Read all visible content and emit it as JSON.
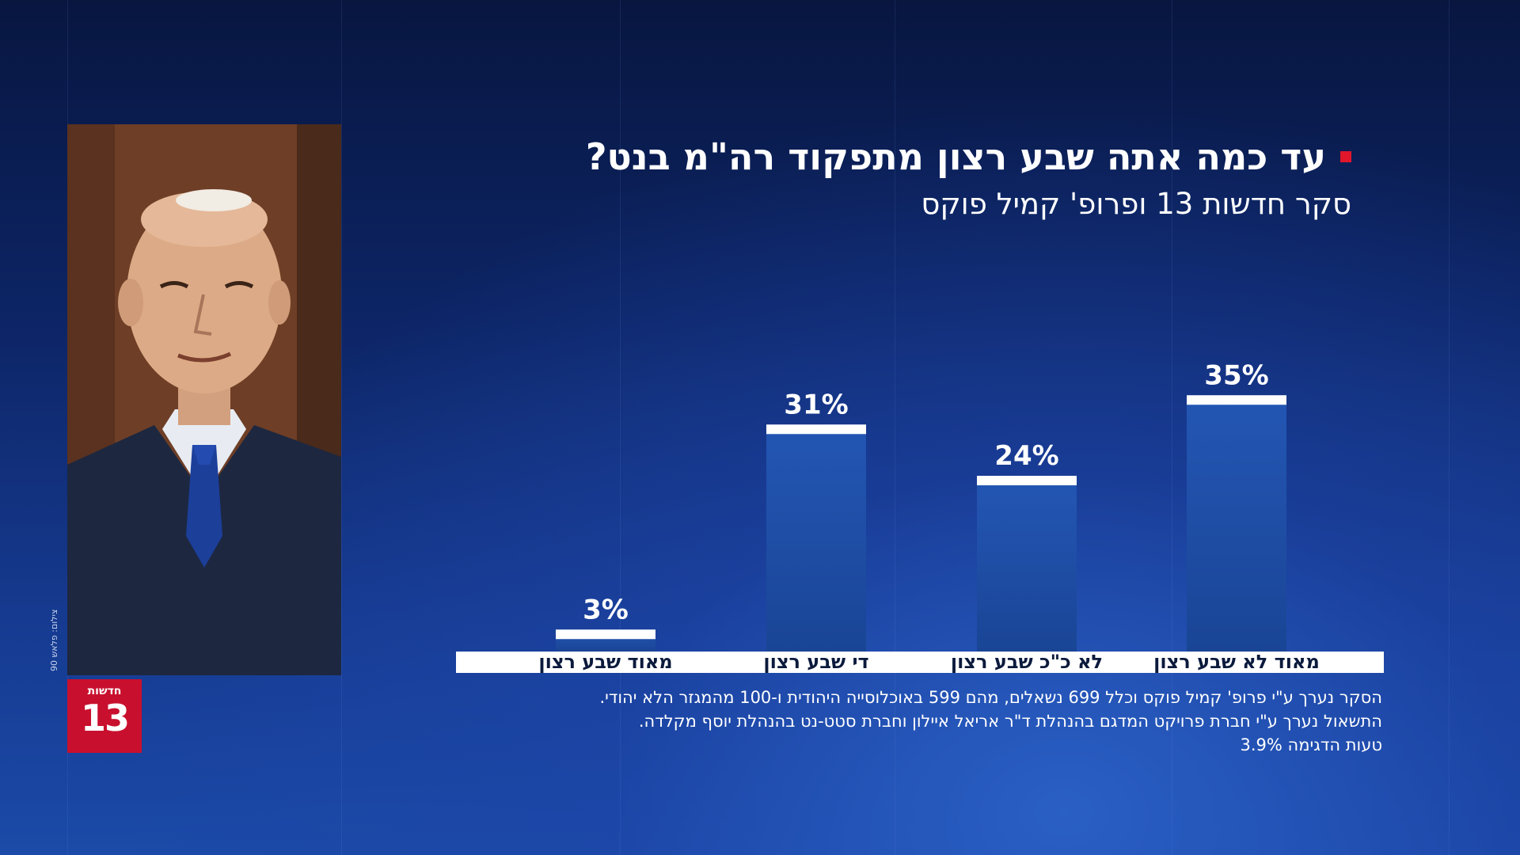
{
  "title": "עד כמה אתה שבע רצון מתפקוד רה\"מ בנט?",
  "subtitle": "סקר חדשות 13 ופרופ' קמיל פוקס",
  "photo_credit": "צילום: פלאש 90",
  "logo": {
    "word": "חדשות",
    "number": "13"
  },
  "footnote": {
    "line1": "הסקר נערך ע\"י פרופ' קמיל פוקס וכלל 699 נשאלים, מהם 599 באוכלוסייה היהודית ו-100 מהמגזר הלא יהודי.",
    "line2": "התשאול נערך ע\"י חברת פרויקט המדגם בהנהלת ד\"ר אריאל איילון וחברת סטט-נט בהנהלת יוסף מקלדה.",
    "line3": "טעות הדגימה 3.9%"
  },
  "colors": {
    "accent": "#e0162b",
    "bar": "#1f4fa8",
    "bar_cap": "#ffffff",
    "logo_bg": "#c8102e"
  },
  "chart_data": {
    "type": "bar",
    "categories": [
      "מאוד לא שבע רצון",
      "לא כ\"כ שבע רצון",
      "די שבע רצון",
      "מאוד שבע רצון"
    ],
    "values": [
      35,
      24,
      31,
      3
    ],
    "value_labels": [
      "35%",
      "24%",
      "31%",
      "3%"
    ],
    "title": "עד כמה אתה שבע רצון מתפקוד רה\"מ בנט?",
    "xlabel": "",
    "ylabel": "",
    "ylim": [
      0,
      40
    ],
    "grid": false,
    "direction": "rtl"
  }
}
